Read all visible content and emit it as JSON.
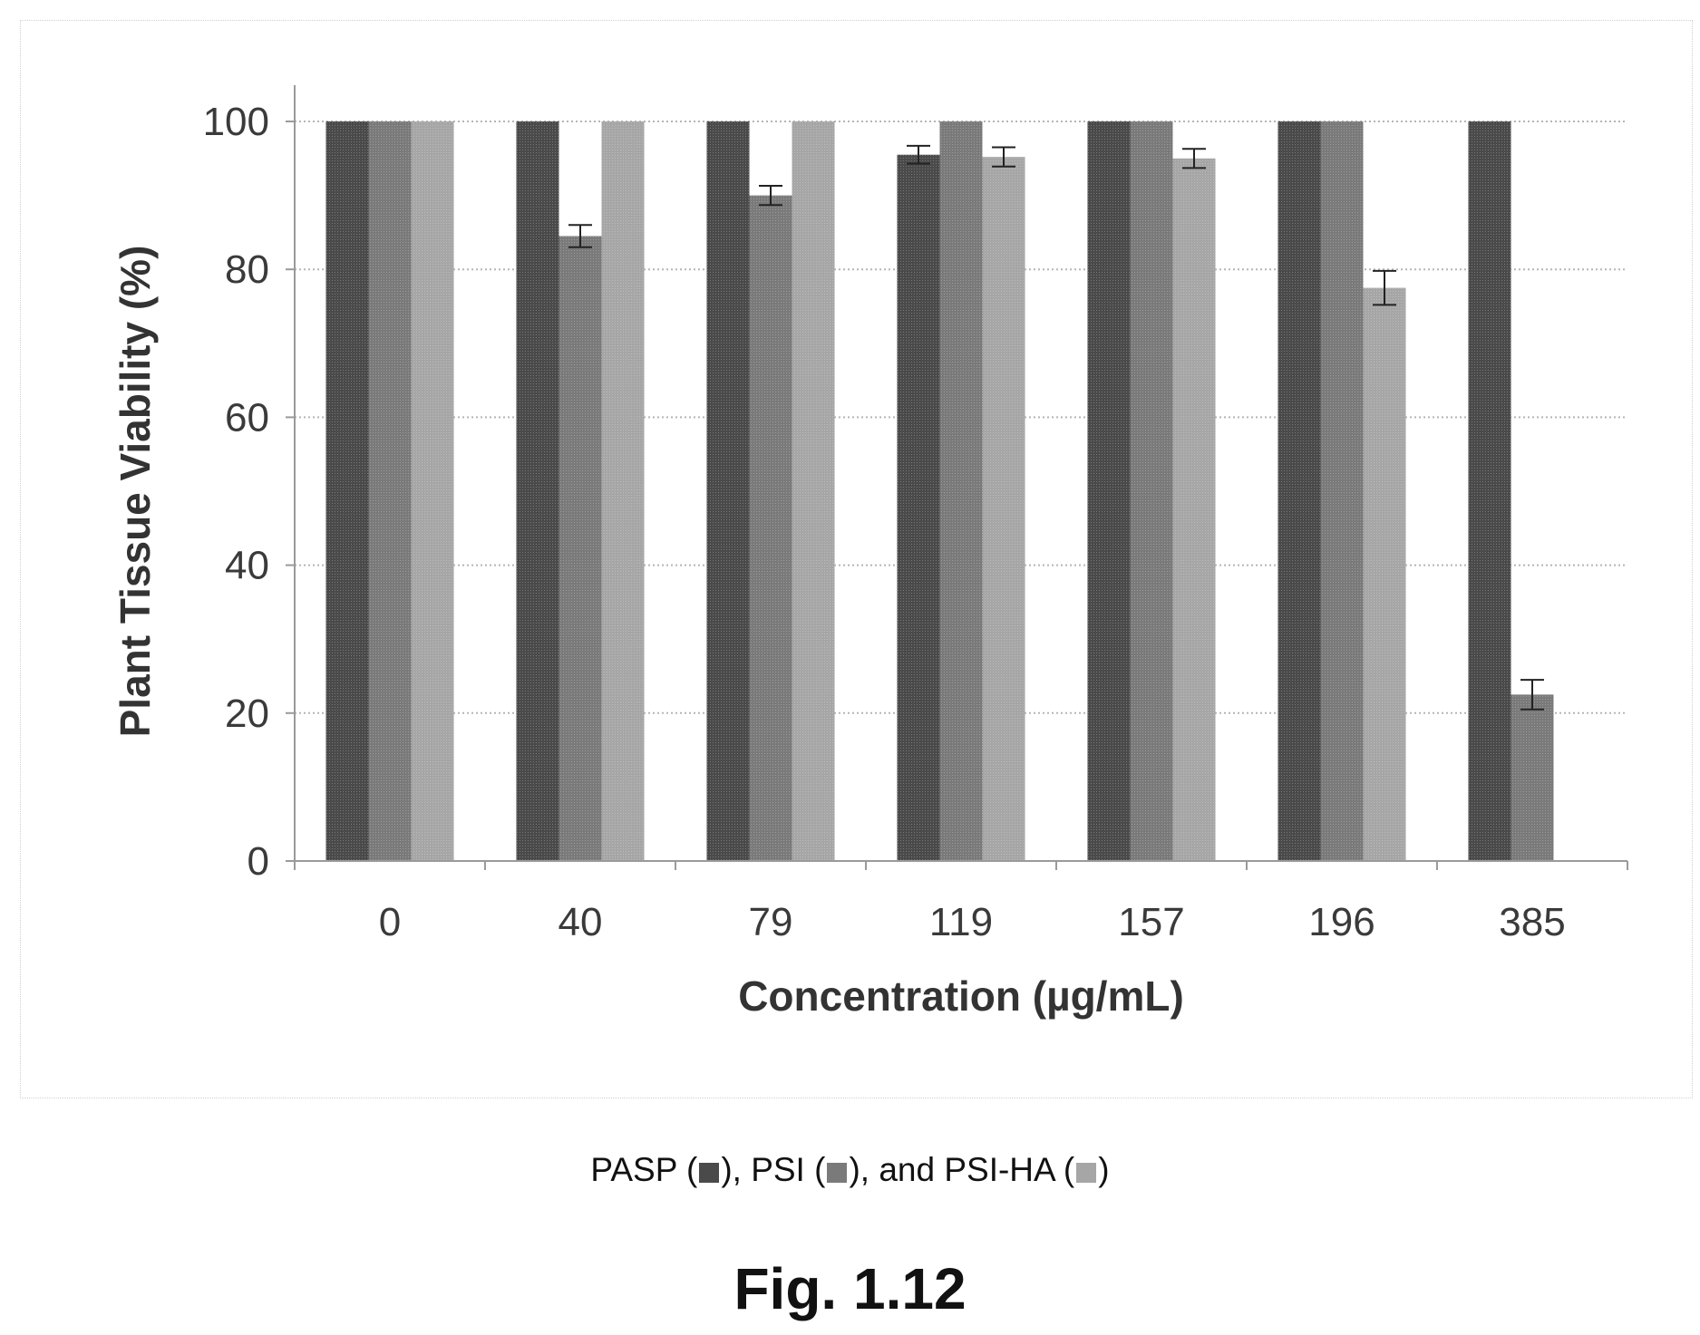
{
  "chart_data": {
    "type": "bar",
    "xlabel": "Concentration (µg/mL)",
    "ylabel": "Plant Tissue Viability (%)",
    "ylim": [
      0,
      100
    ],
    "yticks": [
      0,
      20,
      40,
      60,
      80,
      100
    ],
    "grid": true,
    "categories": [
      "0",
      "40",
      "79",
      "119",
      "157",
      "196",
      "385"
    ],
    "series": [
      {
        "name": "PASP",
        "color": "#4a4a4a",
        "values": [
          100,
          100,
          100,
          95.5,
          100,
          100,
          100
        ],
        "errors": [
          0,
          0,
          0,
          1.2,
          0,
          0,
          0
        ]
      },
      {
        "name": "PSI",
        "color": "#7a7a7a",
        "values": [
          100,
          84.5,
          90,
          100,
          100,
          100,
          22.5
        ],
        "errors": [
          0,
          1.5,
          1.3,
          0,
          0,
          0,
          2
        ]
      },
      {
        "name": "PSI-HA",
        "color": "#a6a6a6",
        "values": [
          100,
          100,
          100,
          95.2,
          95,
          77.5,
          0
        ],
        "errors": [
          0,
          0,
          0,
          1.3,
          1.3,
          2.3,
          0
        ]
      }
    ]
  },
  "legend": {
    "pasp_label": "PASP (",
    "psi_label": "), PSI (",
    "psiha_label": "), and PSI-HA (",
    "end_label": ")"
  },
  "caption": "Fig. 1.12"
}
